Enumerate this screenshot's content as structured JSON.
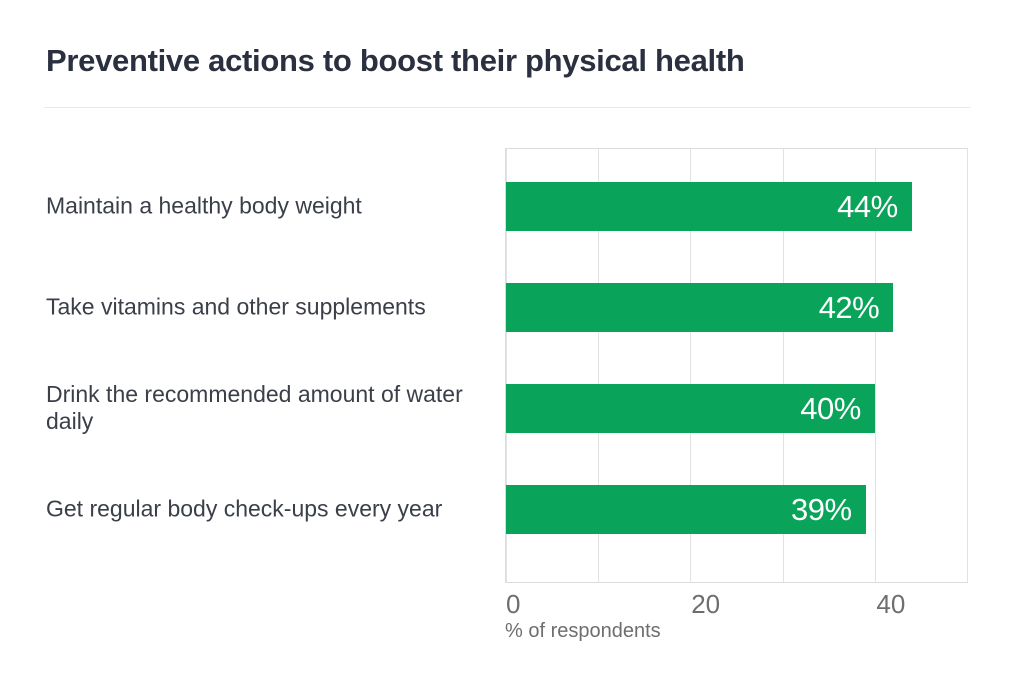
{
  "chart_data": {
    "type": "bar",
    "orientation": "horizontal",
    "title": "Preventive actions to boost their physical health",
    "categories": [
      "Maintain a healthy body weight",
      "Take vitamins and other supplements",
      "Drink the recommended amount of water daily",
      "Get regular body check-ups every year"
    ],
    "values": [
      44,
      42,
      40,
      39
    ],
    "value_labels": [
      "44%",
      "42%",
      "40%",
      "39%"
    ],
    "xlabel": "% of respondents",
    "ylabel": "",
    "xlim": [
      0,
      50
    ],
    "xticks": [
      {
        "value": 0,
        "label": "0"
      },
      {
        "value": 20,
        "label": "20"
      },
      {
        "value": 40,
        "label": "40"
      }
    ],
    "grid_values": [
      0,
      10,
      20,
      30,
      40,
      50
    ],
    "grid": true,
    "legend": "none",
    "colors": {
      "bar": "#09a45a",
      "bar_value_text": "#ffffff",
      "title_text": "#2a303f",
      "category_text": "#3a3f48",
      "axis_text": "#6e6e6e",
      "gridline": "#e2e2e2",
      "plot_border": "#dcdcdc",
      "background": "#ffffff"
    }
  }
}
